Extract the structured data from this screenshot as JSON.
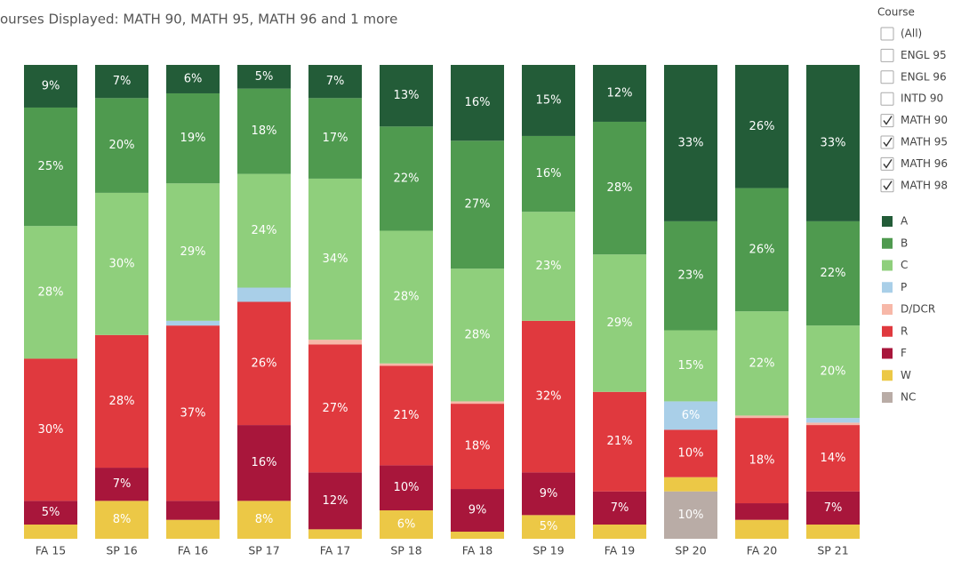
{
  "chart_data": {
    "type": "stacked-bar",
    "subtitle": "ourses Displayed: MATH 90, MATH 95, MATH 96 and 1 more",
    "categories": [
      "FA 15",
      "SP 16",
      "FA 16",
      "SP 17",
      "FA 17",
      "SP 18",
      "FA 18",
      "SP 19",
      "FA 19",
      "SP 20",
      "FA 20",
      "SP 21"
    ],
    "ylim": [
      0,
      100
    ],
    "series": [
      {
        "name": "NC",
        "color": "#b9aca6",
        "values": [
          0,
          0,
          0,
          0,
          0,
          0,
          0,
          0,
          0,
          10,
          0,
          0
        ],
        "value_labels": [
          null,
          null,
          null,
          null,
          null,
          null,
          null,
          null,
          null,
          "10%",
          null,
          null
        ]
      },
      {
        "name": "W",
        "color": "#ecc846",
        "values": [
          3,
          8,
          4,
          8,
          2,
          6,
          1.5,
          5,
          3,
          3,
          4,
          3
        ],
        "value_labels": [
          null,
          "8%",
          null,
          "8%",
          null,
          "6%",
          null,
          "5%",
          null,
          null,
          null,
          null
        ]
      },
      {
        "name": "F",
        "color": "#a8163b",
        "values": [
          5,
          7,
          4,
          16,
          12,
          9.5,
          9,
          9,
          7,
          0,
          3.5,
          7
        ],
        "value_labels": [
          "5%",
          "7%",
          null,
          "16%",
          "12%",
          "10%",
          "9%",
          "9%",
          "7%",
          null,
          null,
          "7%"
        ]
      },
      {
        "name": "R",
        "color": "#e0393e",
        "values": [
          30,
          28,
          37,
          26,
          27,
          21,
          18,
          32,
          21,
          10,
          18,
          14
        ],
        "value_labels": [
          "30%",
          "28%",
          "37%",
          "26%",
          "27%",
          "21%",
          "18%",
          "32%",
          "21%",
          "10%",
          "18%",
          "14%"
        ]
      },
      {
        "name": "D/DCR",
        "color": "#f7b8a8",
        "values": [
          0,
          0,
          0,
          0,
          1,
          0.5,
          0.5,
          0,
          0,
          0,
          0.5,
          0.5
        ],
        "value_labels": [
          null,
          null,
          null,
          null,
          null,
          null,
          null,
          null,
          null,
          null,
          null,
          null
        ]
      },
      {
        "name": "P",
        "color": "#a9cfe8",
        "values": [
          0,
          0,
          1,
          3,
          0,
          0,
          0,
          0,
          0,
          6,
          0,
          1
        ],
        "value_labels": [
          null,
          null,
          null,
          null,
          null,
          null,
          null,
          null,
          null,
          "6%",
          null,
          null
        ]
      },
      {
        "name": "C",
        "color": "#8fcf7c",
        "values": [
          28,
          30,
          29,
          24,
          34,
          28,
          28,
          23,
          29,
          15,
          22,
          19.5
        ],
        "value_labels": [
          "28%",
          "30%",
          "29%",
          "24%",
          "34%",
          "28%",
          "28%",
          "23%",
          "29%",
          "15%",
          "22%",
          "20%"
        ]
      },
      {
        "name": "B",
        "color": "#4f9a4f",
        "values": [
          25,
          20,
          19,
          18,
          17,
          22,
          27,
          16,
          28,
          23,
          26,
          22
        ],
        "value_labels": [
          "25%",
          "20%",
          "19%",
          "18%",
          "17%",
          "22%",
          "27%",
          "16%",
          "28%",
          "23%",
          "26%",
          "22%"
        ]
      },
      {
        "name": "A",
        "color": "#235c38",
        "values": [
          9,
          7,
          6,
          5,
          7,
          13,
          16,
          15,
          12,
          33,
          26,
          33
        ],
        "value_labels": [
          "9%",
          "7%",
          "6%",
          "5%",
          "7%",
          "13%",
          "16%",
          "15%",
          "12%",
          "33%",
          "26%",
          "33%"
        ]
      }
    ]
  },
  "filter": {
    "title": "Course",
    "options": [
      {
        "label": "(All)",
        "checked": false
      },
      {
        "label": "ENGL 95",
        "checked": false
      },
      {
        "label": "ENGL 96",
        "checked": false
      },
      {
        "label": "INTD 90",
        "checked": false
      },
      {
        "label": "MATH 90",
        "checked": true
      },
      {
        "label": "MATH 95",
        "checked": true
      },
      {
        "label": "MATH 96",
        "checked": true
      },
      {
        "label": "MATH 98",
        "checked": true
      }
    ]
  }
}
